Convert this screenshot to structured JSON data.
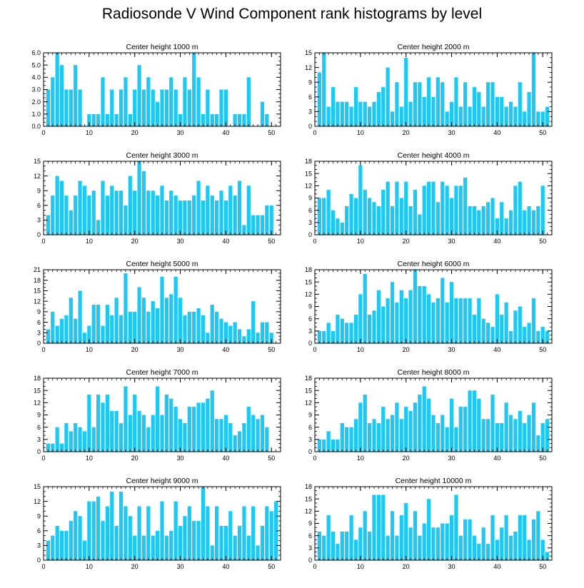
{
  "figure": {
    "title": "Radiosonde V Wind Component rank histograms by level",
    "bar_color": "#1ec8f5",
    "axis_color": "#000000"
  },
  "chart_data": [
    {
      "type": "bar",
      "title": "Center height 1000 m",
      "xlabel": "",
      "ylabel": "",
      "xlim": [
        0,
        52
      ],
      "ylim": [
        0,
        6
      ],
      "xticks": [
        0,
        10,
        20,
        30,
        40,
        50
      ],
      "yticks": [
        0,
        1,
        2,
        3,
        4,
        5,
        6
      ],
      "yticklabels": [
        "0.0",
        "1.0",
        "2.0",
        "3.0",
        "4.0",
        "5.0",
        "6.0"
      ],
      "x": [
        1,
        2,
        3,
        4,
        5,
        6,
        7,
        8,
        9,
        10,
        11,
        12,
        13,
        14,
        15,
        16,
        17,
        18,
        19,
        20,
        21,
        22,
        23,
        24,
        25,
        26,
        27,
        28,
        29,
        30,
        31,
        32,
        33,
        34,
        35,
        36,
        37,
        38,
        39,
        40,
        41,
        42,
        43,
        44,
        45,
        46,
        47,
        48,
        49,
        50,
        51
      ],
      "values": [
        3,
        4,
        6,
        5,
        3,
        3,
        5,
        3,
        0,
        1,
        1,
        1,
        4,
        1,
        3,
        1,
        3,
        4,
        1,
        3,
        5,
        3,
        4,
        3,
        2,
        3,
        3,
        4,
        3,
        1,
        4,
        3,
        6,
        4,
        1,
        3,
        1,
        1,
        3,
        3,
        0,
        1,
        1,
        1,
        4,
        0,
        0,
        2,
        1,
        0,
        0
      ]
    },
    {
      "type": "bar",
      "title": "Center height 2000 m",
      "xlabel": "",
      "ylabel": "",
      "xlim": [
        0,
        52
      ],
      "ylim": [
        0,
        15
      ],
      "xticks": [
        0,
        10,
        20,
        30,
        40,
        50
      ],
      "yticks": [
        0,
        3,
        6,
        9,
        12,
        15
      ],
      "yticklabels": [
        "0",
        "3",
        "6",
        "9",
        "12",
        "15"
      ],
      "x": [
        1,
        2,
        3,
        4,
        5,
        6,
        7,
        8,
        9,
        10,
        11,
        12,
        13,
        14,
        15,
        16,
        17,
        18,
        19,
        20,
        21,
        22,
        23,
        24,
        25,
        26,
        27,
        28,
        29,
        30,
        31,
        32,
        33,
        34,
        35,
        36,
        37,
        38,
        39,
        40,
        41,
        42,
        43,
        44,
        45,
        46,
        47,
        48,
        49,
        50,
        51
      ],
      "values": [
        11,
        15,
        4,
        8,
        5,
        5,
        5,
        4,
        8,
        5,
        5,
        4,
        5,
        7,
        8,
        12,
        3,
        9,
        4,
        14,
        5,
        9,
        9,
        6,
        10,
        6,
        10,
        9,
        3,
        5,
        10,
        4,
        9,
        4,
        8,
        7,
        4,
        9,
        9,
        6,
        6,
        4,
        5,
        4,
        9,
        3,
        7,
        15,
        3,
        3,
        4
      ]
    },
    {
      "type": "bar",
      "title": "Center height 3000 m",
      "xlabel": "",
      "ylabel": "",
      "xlim": [
        0,
        52
      ],
      "ylim": [
        0,
        15
      ],
      "xticks": [
        0,
        10,
        20,
        30,
        40,
        50
      ],
      "yticks": [
        0,
        3,
        6,
        9,
        12,
        15
      ],
      "yticklabels": [
        "0",
        "3",
        "6",
        "9",
        "12",
        "15"
      ],
      "x": [
        1,
        2,
        3,
        4,
        5,
        6,
        7,
        8,
        9,
        10,
        11,
        12,
        13,
        14,
        15,
        16,
        17,
        18,
        19,
        20,
        21,
        22,
        23,
        24,
        25,
        26,
        27,
        28,
        29,
        30,
        31,
        32,
        33,
        34,
        35,
        36,
        37,
        38,
        39,
        40,
        41,
        42,
        43,
        44,
        45,
        46,
        47,
        48,
        49,
        50,
        51
      ],
      "values": [
        4,
        8,
        12,
        11,
        8,
        5,
        8,
        11,
        10,
        8,
        9,
        3,
        11,
        8,
        10,
        9,
        9,
        6,
        12,
        9,
        15,
        13,
        9,
        9,
        8,
        10,
        7,
        9,
        8,
        7,
        7,
        7,
        8,
        11,
        7,
        10,
        8,
        7,
        9,
        7,
        10,
        8,
        11,
        2,
        10,
        4,
        4,
        4,
        6,
        6,
        0
      ]
    },
    {
      "type": "bar",
      "title": "Center height 4000 m",
      "xlabel": "",
      "ylabel": "",
      "xlim": [
        0,
        52
      ],
      "ylim": [
        0,
        18
      ],
      "xticks": [
        0,
        10,
        20,
        30,
        40,
        50
      ],
      "yticks": [
        0,
        3,
        6,
        9,
        12,
        15,
        18
      ],
      "yticklabels": [
        "0",
        "3",
        "6",
        "9",
        "12",
        "15",
        "18"
      ],
      "x": [
        1,
        2,
        3,
        4,
        5,
        6,
        7,
        8,
        9,
        10,
        11,
        12,
        13,
        14,
        15,
        16,
        17,
        18,
        19,
        20,
        21,
        22,
        23,
        24,
        25,
        26,
        27,
        28,
        29,
        30,
        31,
        32,
        33,
        34,
        35,
        36,
        37,
        38,
        39,
        40,
        41,
        42,
        43,
        44,
        45,
        46,
        47,
        48,
        49,
        50,
        51
      ],
      "values": [
        9,
        9,
        11,
        6,
        4,
        3,
        7,
        10,
        9,
        17,
        11,
        9,
        8,
        7,
        11,
        13,
        7,
        13,
        9,
        13,
        7,
        11,
        5,
        12,
        13,
        13,
        8,
        13,
        12,
        9,
        12,
        12,
        14,
        7,
        7,
        6,
        7,
        8,
        9,
        4,
        8,
        4,
        6,
        12,
        13,
        6,
        7,
        6,
        7,
        12,
        0
      ]
    },
    {
      "type": "bar",
      "title": "Center height 5000 m",
      "xlabel": "",
      "ylabel": "",
      "xlim": [
        0,
        52
      ],
      "ylim": [
        0,
        21
      ],
      "xticks": [
        0,
        10,
        20,
        30,
        40,
        50
      ],
      "yticks": [
        0,
        3,
        6,
        9,
        12,
        15,
        18,
        21
      ],
      "yticklabels": [
        "0",
        "3",
        "6",
        "9",
        "12",
        "15",
        "18",
        "21"
      ],
      "x": [
        1,
        2,
        3,
        4,
        5,
        6,
        7,
        8,
        9,
        10,
        11,
        12,
        13,
        14,
        15,
        16,
        17,
        18,
        19,
        20,
        21,
        22,
        23,
        24,
        25,
        26,
        27,
        28,
        29,
        30,
        31,
        32,
        33,
        34,
        35,
        36,
        37,
        38,
        39,
        40,
        41,
        42,
        43,
        44,
        45,
        46,
        47,
        48,
        49,
        50,
        51
      ],
      "values": [
        4,
        9,
        5,
        7,
        8,
        13,
        7,
        15,
        3,
        5,
        11,
        11,
        5,
        11,
        8,
        13,
        8,
        20,
        9,
        9,
        16,
        13,
        9,
        12,
        10,
        19,
        13,
        14,
        19,
        13,
        8,
        9,
        9,
        10,
        8,
        3,
        11,
        9,
        7,
        6,
        5,
        6,
        4,
        2,
        4,
        12,
        3,
        6,
        6,
        3,
        0
      ]
    },
    {
      "type": "bar",
      "title": "Center height 6000 m",
      "xlabel": "",
      "ylabel": "",
      "xlim": [
        0,
        52
      ],
      "ylim": [
        0,
        18
      ],
      "xticks": [
        0,
        10,
        20,
        30,
        40,
        50
      ],
      "yticks": [
        0,
        3,
        6,
        9,
        12,
        15,
        18
      ],
      "yticklabels": [
        "0",
        "3",
        "6",
        "9",
        "12",
        "15",
        "18"
      ],
      "x": [
        1,
        2,
        3,
        4,
        5,
        6,
        7,
        8,
        9,
        10,
        11,
        12,
        13,
        14,
        15,
        16,
        17,
        18,
        19,
        20,
        21,
        22,
        23,
        24,
        25,
        26,
        27,
        28,
        29,
        30,
        31,
        32,
        33,
        34,
        35,
        36,
        37,
        38,
        39,
        40,
        41,
        42,
        43,
        44,
        45,
        46,
        47,
        48,
        49,
        50,
        51
      ],
      "values": [
        3,
        3,
        5,
        3,
        7,
        6,
        5,
        5,
        7,
        12,
        17,
        7,
        8,
        13,
        9,
        11,
        15,
        10,
        13,
        11,
        13,
        18,
        14,
        14,
        12,
        10,
        11,
        16,
        10,
        15,
        11,
        11,
        11,
        11,
        7,
        11,
        6,
        5,
        4,
        12,
        7,
        10,
        3,
        8,
        9,
        4,
        5,
        11,
        3,
        4,
        3
      ]
    },
    {
      "type": "bar",
      "title": "Center height 7000 m",
      "xlabel": "",
      "ylabel": "",
      "xlim": [
        0,
        52
      ],
      "ylim": [
        0,
        18
      ],
      "xticks": [
        0,
        10,
        20,
        30,
        40,
        50
      ],
      "yticks": [
        0,
        3,
        6,
        9,
        12,
        15,
        18
      ],
      "yticklabels": [
        "0",
        "3",
        "6",
        "9",
        "12",
        "15",
        "18"
      ],
      "x": [
        1,
        2,
        3,
        4,
        5,
        6,
        7,
        8,
        9,
        10,
        11,
        12,
        13,
        14,
        15,
        16,
        17,
        18,
        19,
        20,
        21,
        22,
        23,
        24,
        25,
        26,
        27,
        28,
        29,
        30,
        31,
        32,
        33,
        34,
        35,
        36,
        37,
        38,
        39,
        40,
        41,
        42,
        43,
        44,
        45,
        46,
        47,
        48,
        49,
        50,
        51
      ],
      "values": [
        2,
        2,
        6,
        2,
        7,
        5,
        7,
        6,
        5,
        14,
        6,
        14,
        12,
        14,
        10,
        10,
        7,
        16,
        9,
        14,
        10,
        9,
        6,
        9,
        16,
        9,
        14,
        13,
        11,
        8,
        7,
        11,
        11,
        12,
        12,
        13,
        15,
        8,
        8,
        9,
        7,
        4,
        5,
        7,
        11,
        9,
        8,
        9,
        6,
        0,
        0
      ]
    },
    {
      "type": "bar",
      "title": "Center height 8000 m",
      "xlabel": "",
      "ylabel": "",
      "xlim": [
        0,
        52
      ],
      "ylim": [
        0,
        18
      ],
      "xticks": [
        0,
        10,
        20,
        30,
        40,
        50
      ],
      "yticks": [
        0,
        3,
        6,
        9,
        12,
        15,
        18
      ],
      "yticklabels": [
        "0",
        "3",
        "6",
        "9",
        "12",
        "15",
        "18"
      ],
      "x": [
        1,
        2,
        3,
        4,
        5,
        6,
        7,
        8,
        9,
        10,
        11,
        12,
        13,
        14,
        15,
        16,
        17,
        18,
        19,
        20,
        21,
        22,
        23,
        24,
        25,
        26,
        27,
        28,
        29,
        30,
        31,
        32,
        33,
        34,
        35,
        36,
        37,
        38,
        39,
        40,
        41,
        42,
        43,
        44,
        45,
        46,
        47,
        48,
        49,
        50,
        51
      ],
      "values": [
        3,
        3,
        5,
        3,
        3,
        7,
        6,
        6,
        8,
        12,
        14,
        7,
        8,
        7,
        11,
        8,
        9,
        12,
        8,
        11,
        10,
        12,
        14,
        16,
        13,
        9,
        7,
        9,
        6,
        13,
        6,
        11,
        11,
        15,
        15,
        13,
        8,
        8,
        14,
        7,
        7,
        12,
        9,
        8,
        10,
        7,
        9,
        12,
        4,
        7,
        8
      ]
    },
    {
      "type": "bar",
      "title": "Center height 9000 m",
      "xlabel": "",
      "ylabel": "",
      "xlim": [
        0,
        52
      ],
      "ylim": [
        0,
        15
      ],
      "xticks": [
        0,
        10,
        20,
        30,
        40,
        50
      ],
      "yticks": [
        0,
        3,
        6,
        9,
        12,
        15
      ],
      "yticklabels": [
        "0",
        "3",
        "6",
        "9",
        "12",
        "15"
      ],
      "x": [
        1,
        2,
        3,
        4,
        5,
        6,
        7,
        8,
        9,
        10,
        11,
        12,
        13,
        14,
        15,
        16,
        17,
        18,
        19,
        20,
        21,
        22,
        23,
        24,
        25,
        26,
        27,
        28,
        29,
        30,
        31,
        32,
        33,
        34,
        35,
        36,
        37,
        38,
        39,
        40,
        41,
        42,
        43,
        44,
        45,
        46,
        47,
        48,
        49,
        50,
        51
      ],
      "values": [
        4,
        5,
        7,
        6,
        6,
        8,
        10,
        9,
        4,
        12,
        12,
        13,
        8,
        11,
        14,
        7,
        14,
        11,
        9,
        5,
        11,
        5,
        11,
        5,
        6,
        12,
        5,
        6,
        12,
        7,
        9,
        11,
        8,
        8,
        15,
        11,
        3,
        11,
        7,
        7,
        10,
        5,
        7,
        11,
        5,
        11,
        3,
        7,
        11,
        10,
        12
      ]
    },
    {
      "type": "bar",
      "title": "Center height 10000 m",
      "xlabel": "",
      "ylabel": "",
      "xlim": [
        0,
        52
      ],
      "ylim": [
        0,
        18
      ],
      "xticks": [
        0,
        10,
        20,
        30,
        40,
        50
      ],
      "yticks": [
        0,
        3,
        6,
        9,
        12,
        15,
        18
      ],
      "yticklabels": [
        "0",
        "3",
        "6",
        "9",
        "12",
        "15",
        "18"
      ],
      "x": [
        1,
        2,
        3,
        4,
        5,
        6,
        7,
        8,
        9,
        10,
        11,
        12,
        13,
        14,
        15,
        16,
        17,
        18,
        19,
        20,
        21,
        22,
        23,
        24,
        25,
        26,
        27,
        28,
        29,
        30,
        31,
        32,
        33,
        34,
        35,
        36,
        37,
        38,
        39,
        40,
        41,
        42,
        43,
        44,
        45,
        46,
        47,
        48,
        49,
        50,
        51
      ],
      "values": [
        7,
        6,
        11,
        7,
        4,
        7,
        7,
        11,
        5,
        8,
        12,
        7,
        16,
        16,
        16,
        6,
        12,
        6,
        11,
        14,
        8,
        12,
        6,
        9,
        15,
        8,
        8,
        9,
        9,
        11,
        16,
        6,
        10,
        10,
        6,
        4,
        8,
        4,
        11,
        5,
        8,
        11,
        6,
        7,
        11,
        11,
        5,
        10,
        12,
        5,
        2
      ]
    }
  ]
}
